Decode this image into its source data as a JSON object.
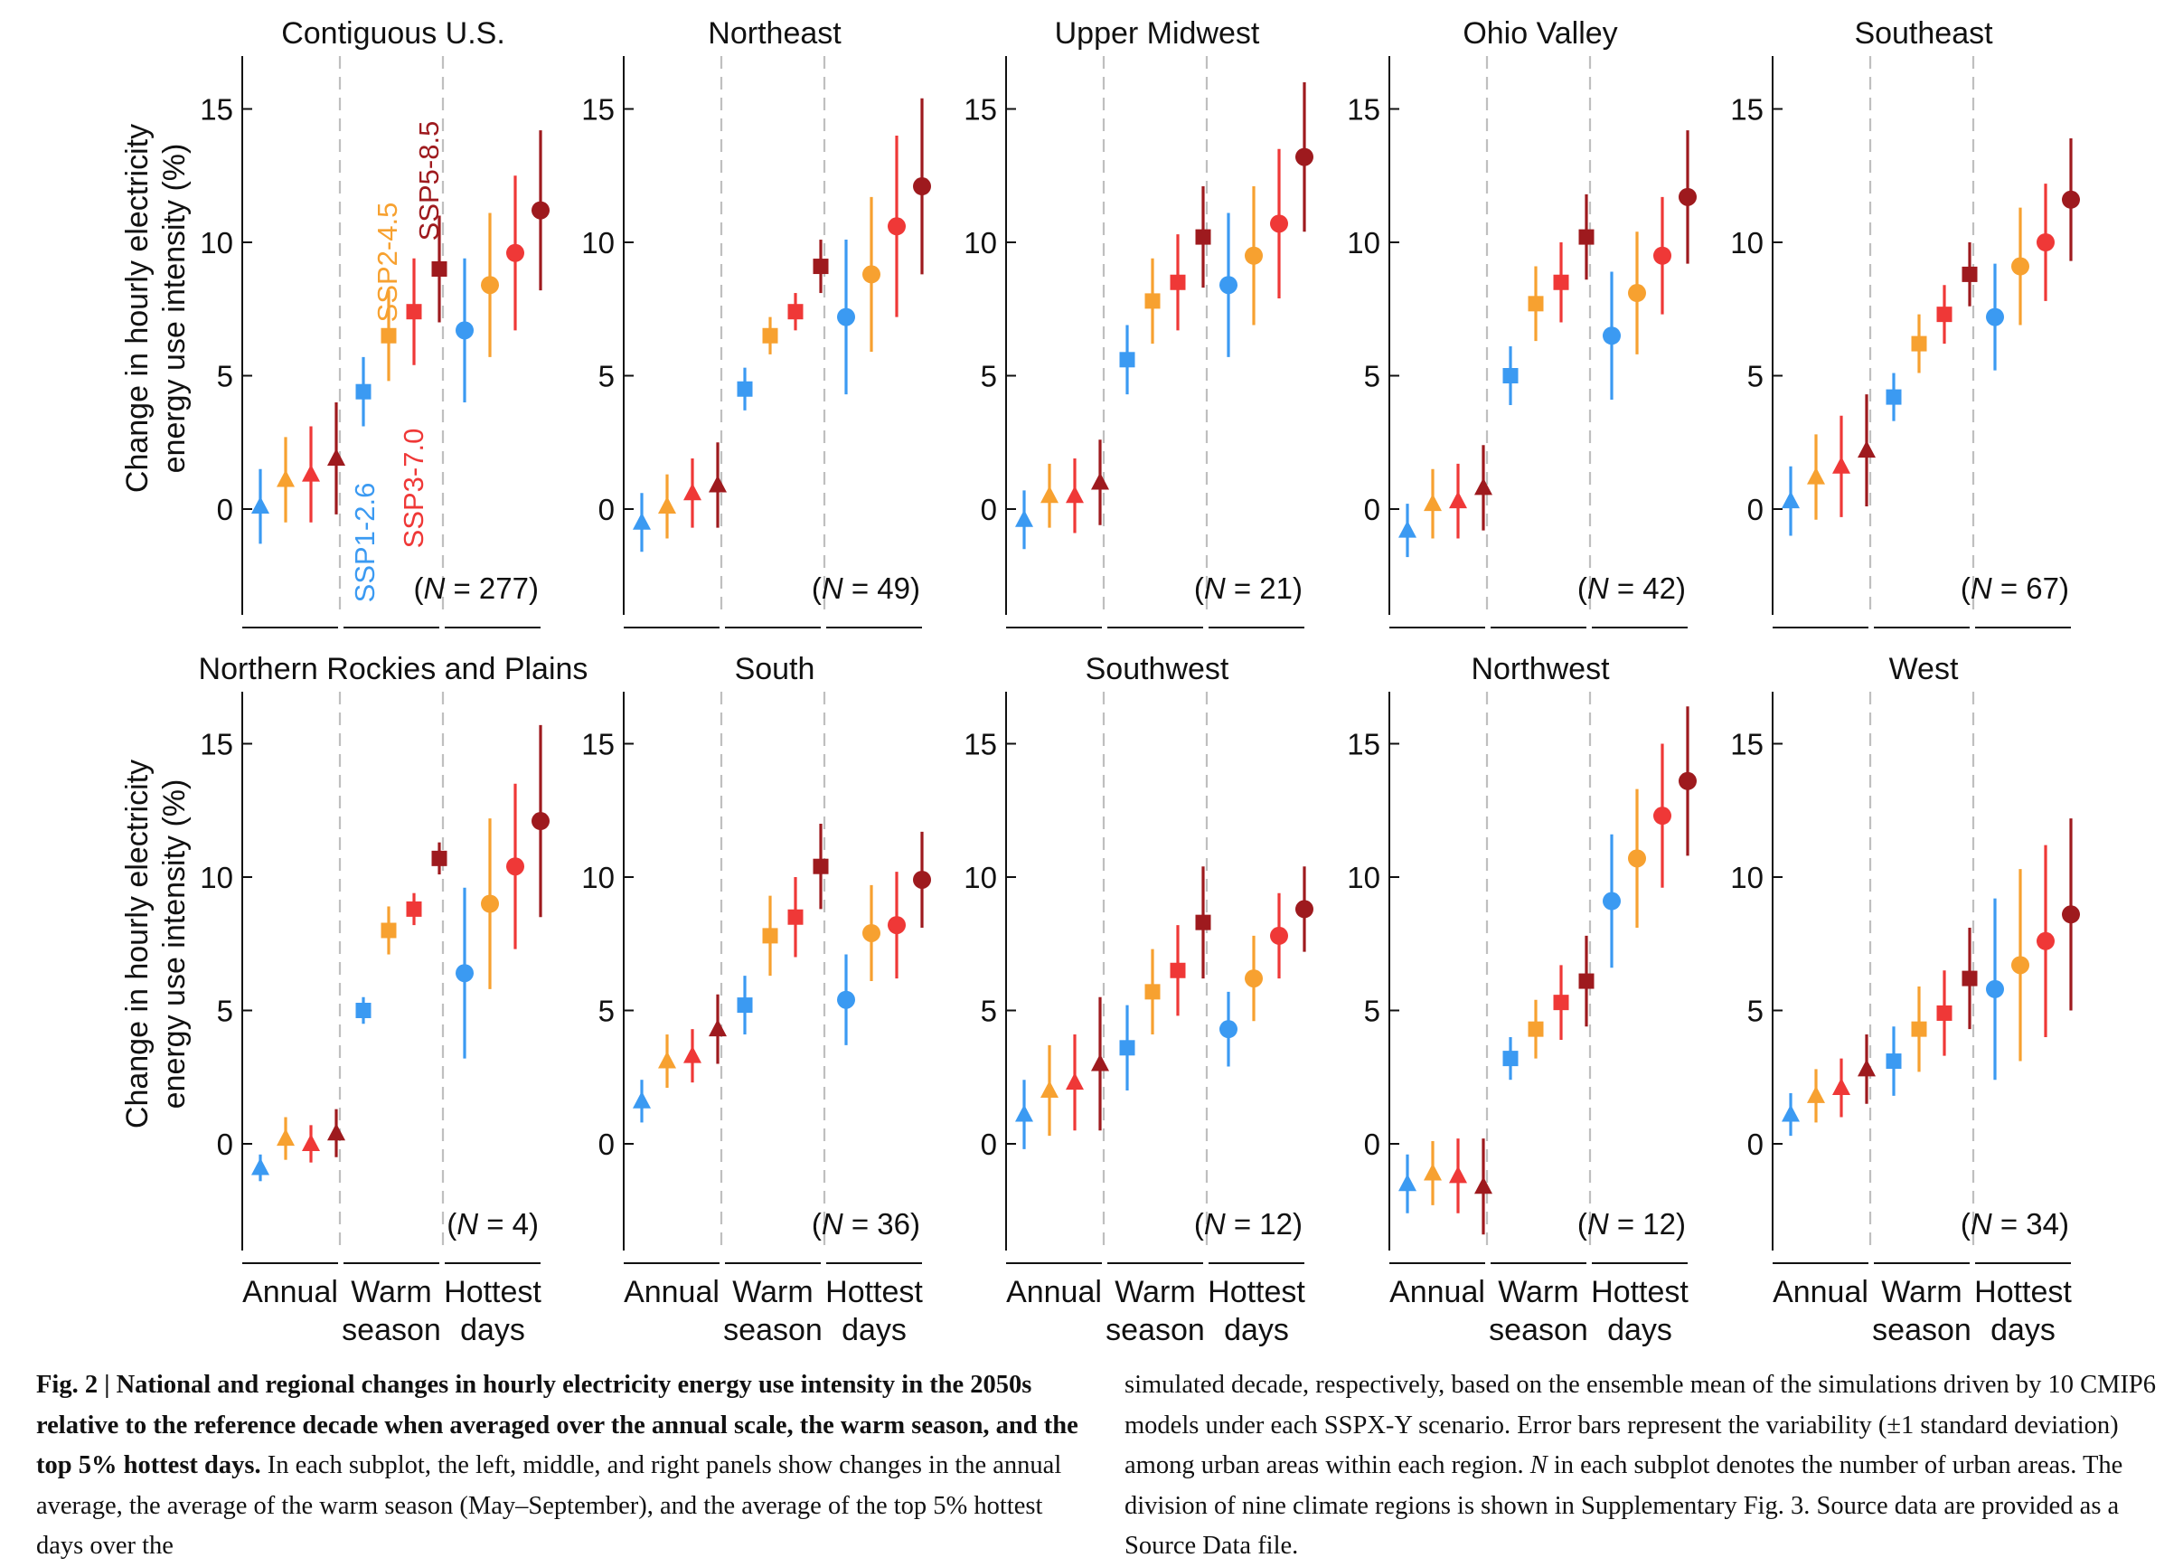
{
  "colors": {
    "ssp126": "#3b9af2",
    "ssp245": "#f7a130",
    "ssp370": "#ef3837",
    "ssp585": "#9e1a1e",
    "divider": "#bfbfbf",
    "axis": "#111111"
  },
  "scenarios": [
    {
      "key": "ssp126",
      "label": "SSP1-2.6"
    },
    {
      "key": "ssp245",
      "label": "SSP2-4.5"
    },
    {
      "key": "ssp370",
      "label": "SSP3-7.0"
    },
    {
      "key": "ssp585",
      "label": "SSP5-8.5"
    }
  ],
  "y_axis_label": [
    "Change in hourly electricity",
    "energy use intensity (%)"
  ],
  "x_categories": [
    [
      "Annual"
    ],
    [
      "Warm",
      "season"
    ],
    [
      "Hottest",
      "days"
    ]
  ],
  "chart_data": {
    "type": "scatter",
    "y_ticks": [
      0,
      5,
      10,
      15
    ],
    "ylim": [
      -4,
      17
    ],
    "markers": {
      "Annual": "triangle",
      "Warm season": "square",
      "Hottest days": "circle"
    },
    "panels": [
      {
        "title": "Contiguous U.S.",
        "n_text": "(N = 277)",
        "mean": [
          [
            0.1,
            1.1,
            1.3,
            1.9
          ],
          [
            4.4,
            6.5,
            7.4,
            9.0
          ],
          [
            6.7,
            8.4,
            9.6,
            11.2
          ]
        ],
        "sd": [
          [
            1.4,
            1.6,
            1.8,
            2.1
          ],
          [
            1.3,
            1.7,
            2.0,
            2.0
          ],
          [
            2.7,
            2.7,
            2.9,
            3.0
          ]
        ]
      },
      {
        "title": "Northeast",
        "n_text": "(N = 49)",
        "mean": [
          [
            -0.5,
            0.1,
            0.6,
            0.9
          ],
          [
            4.5,
            6.5,
            7.4,
            9.1
          ],
          [
            7.2,
            8.8,
            10.6,
            12.1
          ]
        ],
        "sd": [
          [
            1.1,
            1.2,
            1.3,
            1.6
          ],
          [
            0.8,
            0.7,
            0.7,
            1.0
          ],
          [
            2.9,
            2.9,
            3.4,
            3.3
          ]
        ]
      },
      {
        "title": "Upper Midwest",
        "n_text": "(N = 21)",
        "mean": [
          [
            -0.4,
            0.5,
            0.5,
            1.0
          ],
          [
            5.6,
            7.8,
            8.5,
            10.2
          ],
          [
            8.4,
            9.5,
            10.7,
            13.2
          ]
        ],
        "sd": [
          [
            1.1,
            1.2,
            1.4,
            1.6
          ],
          [
            1.3,
            1.6,
            1.8,
            1.9
          ],
          [
            2.7,
            2.6,
            2.8,
            2.8
          ]
        ]
      },
      {
        "title": "Ohio Valley",
        "n_text": "(N = 42)",
        "mean": [
          [
            -0.8,
            0.2,
            0.3,
            0.8
          ],
          [
            5.0,
            7.7,
            8.5,
            10.2
          ],
          [
            6.5,
            8.1,
            9.5,
            11.7
          ]
        ],
        "sd": [
          [
            1.0,
            1.3,
            1.4,
            1.6
          ],
          [
            1.1,
            1.4,
            1.5,
            1.6
          ],
          [
            2.4,
            2.3,
            2.2,
            2.5
          ]
        ]
      },
      {
        "title": "Southeast",
        "n_text": "(N = 67)",
        "mean": [
          [
            0.3,
            1.2,
            1.6,
            2.2
          ],
          [
            4.2,
            6.2,
            7.3,
            8.8
          ],
          [
            7.2,
            9.1,
            10.0,
            11.6
          ]
        ],
        "sd": [
          [
            1.3,
            1.6,
            1.9,
            2.1
          ],
          [
            0.9,
            1.1,
            1.1,
            1.2
          ],
          [
            2.0,
            2.2,
            2.2,
            2.3
          ]
        ]
      },
      {
        "title": "Northern Rockies and Plains",
        "n_text": "(N = 4)",
        "mean": [
          [
            -0.9,
            0.2,
            0.0,
            0.4
          ],
          [
            5.0,
            8.0,
            8.8,
            10.7
          ],
          [
            6.4,
            9.0,
            10.4,
            12.1
          ]
        ],
        "sd": [
          [
            0.5,
            0.8,
            0.7,
            0.9
          ],
          [
            0.5,
            0.9,
            0.6,
            0.6
          ],
          [
            3.2,
            3.2,
            3.1,
            3.6
          ]
        ]
      },
      {
        "title": "South",
        "n_text": "(N = 36)",
        "mean": [
          [
            1.6,
            3.1,
            3.3,
            4.3
          ],
          [
            5.2,
            7.8,
            8.5,
            10.4
          ],
          [
            5.4,
            7.9,
            8.2,
            9.9
          ]
        ],
        "sd": [
          [
            0.8,
            1.0,
            1.0,
            1.3
          ],
          [
            1.1,
            1.5,
            1.5,
            1.6
          ],
          [
            1.7,
            1.8,
            2.0,
            1.8
          ]
        ]
      },
      {
        "title": "Southwest",
        "n_text": "(N = 12)",
        "mean": [
          [
            1.1,
            2.0,
            2.3,
            3.0
          ],
          [
            3.6,
            5.7,
            6.5,
            8.3
          ],
          [
            4.3,
            6.2,
            7.8,
            8.8
          ]
        ],
        "sd": [
          [
            1.3,
            1.7,
            1.8,
            2.5
          ],
          [
            1.6,
            1.6,
            1.7,
            2.1
          ],
          [
            1.4,
            1.6,
            1.6,
            1.6
          ]
        ]
      },
      {
        "title": "Northwest",
        "n_text": "(N = 12)",
        "mean": [
          [
            -1.5,
            -1.1,
            -1.2,
            -1.6
          ],
          [
            3.2,
            4.3,
            5.3,
            6.1
          ],
          [
            9.1,
            10.7,
            12.3,
            13.6
          ]
        ],
        "sd": [
          [
            1.1,
            1.2,
            1.4,
            1.8
          ],
          [
            0.8,
            1.1,
            1.4,
            1.7
          ],
          [
            2.5,
            2.6,
            2.7,
            2.8
          ]
        ]
      },
      {
        "title": "West",
        "n_text": "(N = 34)",
        "mean": [
          [
            1.1,
            1.8,
            2.1,
            2.8
          ],
          [
            3.1,
            4.3,
            4.9,
            6.2
          ],
          [
            5.8,
            6.7,
            7.6,
            8.6
          ]
        ],
        "sd": [
          [
            0.8,
            1.0,
            1.1,
            1.3
          ],
          [
            1.3,
            1.6,
            1.6,
            1.9
          ],
          [
            3.4,
            3.6,
            3.6,
            3.6
          ]
        ]
      }
    ]
  },
  "caption": {
    "left_bold": "Fig. 2 | National and regional changes in hourly electricity energy use intensity in the 2050s relative to the reference decade when averaged over the annual scale, the warm season, and the top 5% hottest days.",
    "left_regular": " In each subplot, the left, middle, and right panels show changes in the annual average, the average of the warm season (May–September), and the average of the top 5% hottest days over the",
    "right_part1": "simulated decade, respectively, based on the ensemble mean of the simulations driven by 10 CMIP6 models under each SSPX-Y scenario. Error bars represent the variability (±1 standard deviation) among urban areas within each region. ",
    "right_n": "N",
    "right_part2": " in each subplot denotes the number of urban areas. The division of nine climate regions is shown in Supplementary Fig. 3. Source data are provided as a Source Data file."
  }
}
